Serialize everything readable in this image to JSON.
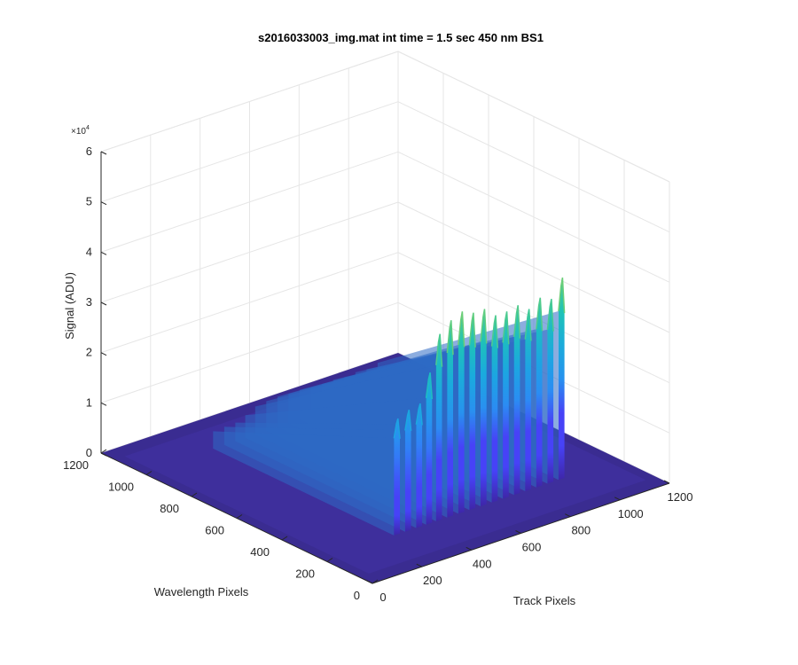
{
  "chart_data": {
    "type": "surface",
    "title": "s2016033003_img.mat int time = 1.5 sec  450 nm BS1",
    "xlabel": "Track Pixels",
    "ylabel": "Wavelength Pixels",
    "zlabel": "Signal (ADU)",
    "z_exponent_base": "×10",
    "z_exponent_power": "4",
    "xlim": [
      0,
      1200
    ],
    "ylim": [
      0,
      1200
    ],
    "zlim": [
      0,
      60000
    ],
    "x_ticks": [
      "0",
      "200",
      "400",
      "600",
      "800",
      "1000",
      "1200"
    ],
    "y_ticks": [
      "0",
      "200",
      "400",
      "600",
      "800",
      "1000",
      "1200"
    ],
    "z_ticks": [
      "0",
      "1",
      "2",
      "3",
      "4",
      "5",
      "6"
    ],
    "grid": true,
    "colormap": [
      "#3e26a8",
      "#4743f9",
      "#2e87f7",
      "#1aa9df",
      "#1fc6b2",
      "#73cf72",
      "#d2bb3e",
      "#fbe11e"
    ],
    "flat_region": {
      "x": [
        0,
        1200
      ],
      "y": [
        0,
        1200
      ],
      "z": 0
    },
    "wavelength_band": [
      220,
      1020
    ],
    "tracks": [
      {
        "x": 300,
        "peak": 23000
      },
      {
        "x": 345,
        "peak": 24000
      },
      {
        "x": 390,
        "peak": 24500
      },
      {
        "x": 430,
        "peak": 30000
      },
      {
        "x": 470,
        "peak": 37000
      },
      {
        "x": 515,
        "peak": 39000
      },
      {
        "x": 560,
        "peak": 40000
      },
      {
        "x": 605,
        "peak": 39000
      },
      {
        "x": 650,
        "peak": 39000
      },
      {
        "x": 695,
        "peak": 37000
      },
      {
        "x": 740,
        "peak": 37000
      },
      {
        "x": 785,
        "peak": 37500
      },
      {
        "x": 830,
        "peak": 36000
      },
      {
        "x": 875,
        "peak": 37500
      },
      {
        "x": 920,
        "peak": 36500
      },
      {
        "x": 965,
        "peak": 40000
      }
    ]
  }
}
